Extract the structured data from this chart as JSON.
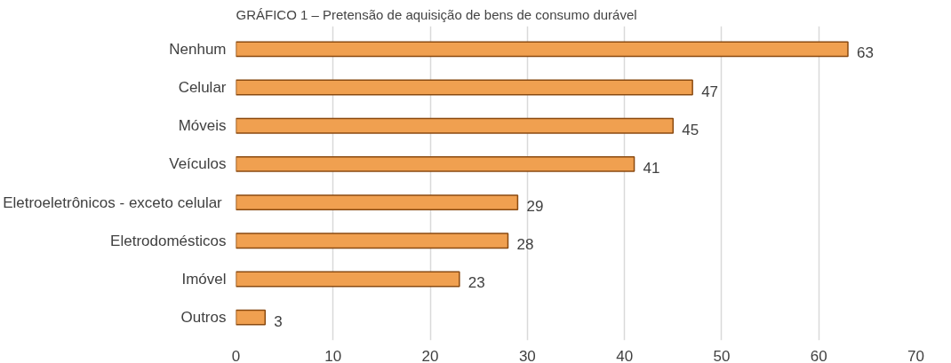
{
  "chart_data": {
    "type": "bar",
    "orientation": "horizontal",
    "title": "GRÁFICO 1 – Pretensão de aquisição de bens de consumo durável",
    "categories": [
      "Nenhum",
      "Celular",
      "Móveis",
      "Veículos",
      "Eletroeletrônicos  - exceto celular",
      "Eletrodomésticos",
      "Imóvel",
      "Outros"
    ],
    "values": [
      63,
      47,
      45,
      41,
      29,
      28,
      23,
      3
    ],
    "color": "#f0a050",
    "xlim": [
      0,
      70
    ],
    "xticks": [
      0,
      10,
      20,
      30,
      40,
      50,
      60,
      70
    ],
    "grid": "x",
    "data_labels": true
  }
}
